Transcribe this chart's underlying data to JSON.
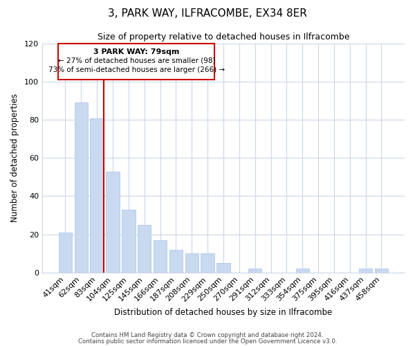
{
  "title": "3, PARK WAY, ILFRACOMBE, EX34 8ER",
  "subtitle": "Size of property relative to detached houses in Ilfracombe",
  "xlabel": "Distribution of detached houses by size in Ilfracombe",
  "ylabel": "Number of detached properties",
  "bar_labels": [
    "41sqm",
    "62sqm",
    "83sqm",
    "104sqm",
    "125sqm",
    "145sqm",
    "166sqm",
    "187sqm",
    "208sqm",
    "229sqm",
    "250sqm",
    "270sqm",
    "291sqm",
    "312sqm",
    "333sqm",
    "354sqm",
    "375sqm",
    "395sqm",
    "416sqm",
    "437sqm",
    "458sqm"
  ],
  "bar_values": [
    21,
    89,
    81,
    53,
    33,
    25,
    17,
    12,
    10,
    10,
    5,
    0,
    2,
    0,
    0,
    2,
    0,
    0,
    0,
    2,
    2
  ],
  "bar_color": "#c8d9f0",
  "bar_edge_color": "#a8c4e8",
  "marker_index": 2,
  "marker_color": "#cc0000",
  "ylim": [
    0,
    120
  ],
  "yticks": [
    0,
    20,
    40,
    60,
    80,
    100,
    120
  ],
  "annotation_title": "3 PARK WAY: 79sqm",
  "annotation_line1": "← 27% of detached houses are smaller (98)",
  "annotation_line2": "73% of semi-detached houses are larger (266) →",
  "footer_line1": "Contains HM Land Registry data © Crown copyright and database right 2024.",
  "footer_line2": "Contains public sector information licensed under the Open Government Licence v3.0.",
  "background_color": "#ffffff",
  "grid_color": "#ccd6e8"
}
